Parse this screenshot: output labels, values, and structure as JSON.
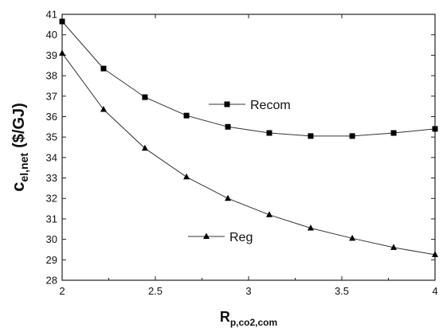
{
  "chart_data": {
    "type": "line",
    "title": "",
    "xlabel": {
      "main": "R",
      "sub": "p,co2,com"
    },
    "ylabel": {
      "main": "c",
      "sub": "el,net",
      "unit": "($/GJ)"
    },
    "xlim": [
      2,
      4
    ],
    "ylim": [
      28,
      41
    ],
    "xticks": [
      2,
      2.5,
      3,
      3.5,
      4
    ],
    "xtick_labels": [
      "2",
      "2.5",
      "3",
      "3.5",
      "4"
    ],
    "yticks": [
      28,
      29,
      30,
      31,
      32,
      33,
      34,
      35,
      36,
      37,
      38,
      39,
      40,
      41
    ],
    "ytick_labels": [
      "28",
      "29",
      "30",
      "31",
      "32",
      "33",
      "34",
      "35",
      "36",
      "37",
      "38",
      "39",
      "40",
      "41"
    ],
    "x": [
      2.0,
      2.222,
      2.444,
      2.667,
      2.889,
      3.111,
      3.333,
      3.556,
      3.778,
      4.0
    ],
    "grid": false,
    "series": [
      {
        "name": "Recom",
        "marker": "square",
        "values": [
          40.65,
          38.35,
          36.95,
          36.05,
          35.5,
          35.2,
          35.05,
          35.05,
          35.2,
          35.4
        ]
      },
      {
        "name": "Reg",
        "marker": "triangle",
        "values": [
          39.1,
          36.35,
          34.45,
          33.05,
          32.0,
          31.2,
          30.55,
          30.05,
          29.6,
          29.25
        ]
      }
    ],
    "legend": "inline-annotations",
    "line_color": "#333333",
    "marker_color": "#000000"
  }
}
